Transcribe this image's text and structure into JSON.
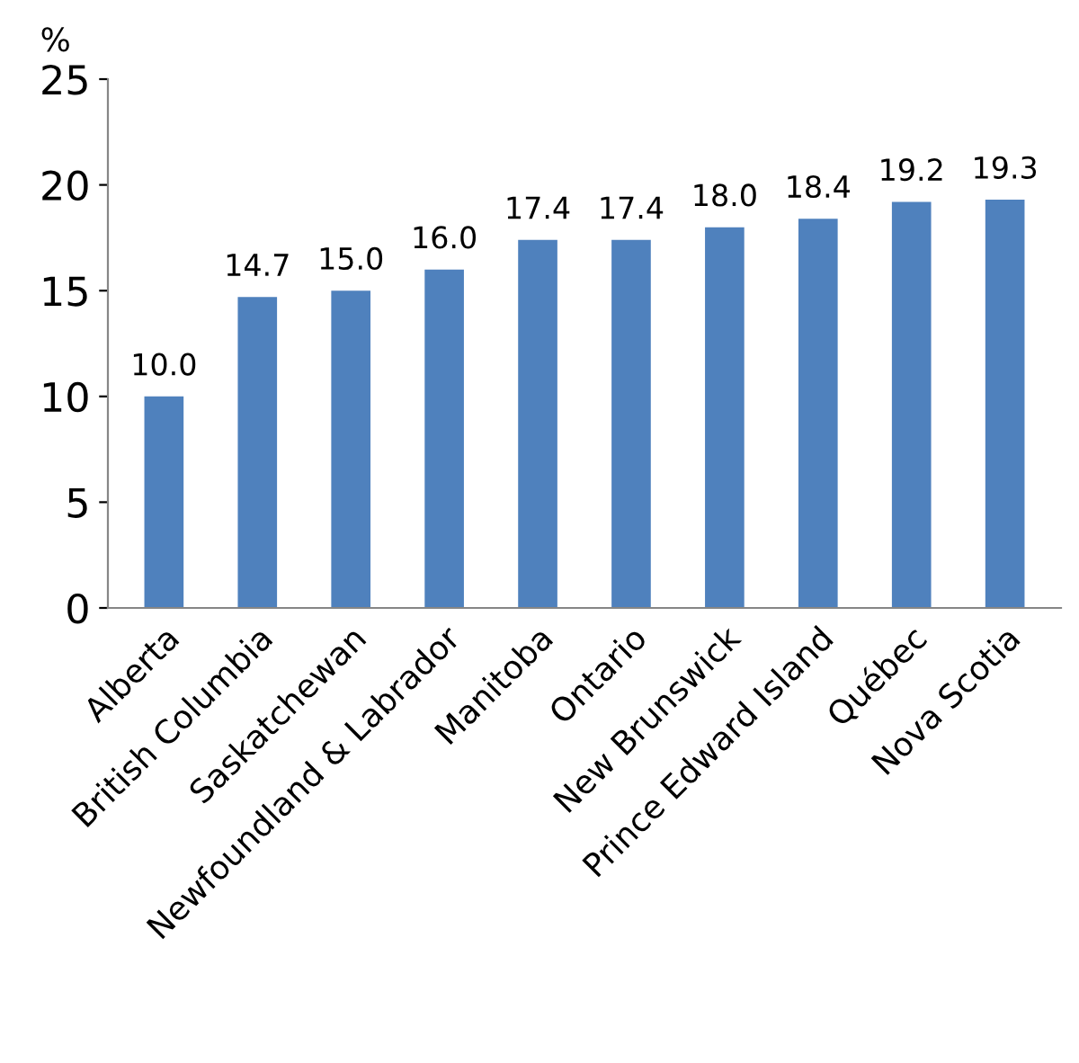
{
  "chart_data": {
    "type": "bar",
    "ylabel": "%",
    "categories": [
      "Alberta",
      "British Columbia",
      "Saskatchewan",
      "Newfoundland & Labrador",
      "Manitoba",
      "Ontario",
      "New Brunswick",
      "Prince Edward Island",
      "Québec",
      "Nova Scotia"
    ],
    "values": [
      10.0,
      14.7,
      15.0,
      16.0,
      17.4,
      17.4,
      18.0,
      18.4,
      19.2,
      19.3
    ],
    "value_labels": [
      "10.0",
      "14.7",
      "15.0",
      "16.0",
      "17.4",
      "17.4",
      "18.0",
      "18.4",
      "19.2",
      "19.3"
    ],
    "color": "#4f81bd",
    "ylim": [
      0,
      25
    ],
    "yticks": [
      0,
      5,
      10,
      15,
      20,
      25
    ],
    "grid": false,
    "legend": false
  }
}
